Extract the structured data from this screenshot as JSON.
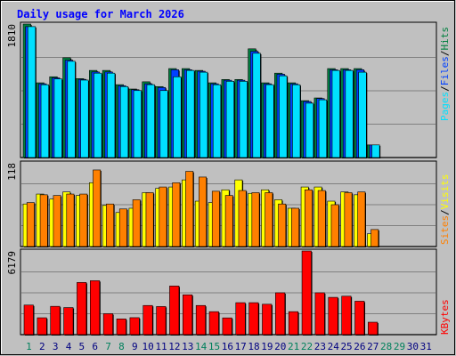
{
  "chart_data": {
    "type": "bar",
    "title": "Daily usage for March 2026",
    "x": [
      1,
      2,
      3,
      4,
      5,
      6,
      7,
      8,
      9,
      10,
      11,
      12,
      13,
      14,
      15,
      16,
      17,
      18,
      19,
      20,
      21,
      22,
      23,
      24,
      25,
      26,
      27,
      28,
      29,
      30,
      31
    ],
    "weekend_days": [
      1,
      7,
      8,
      14,
      15,
      21,
      22,
      28,
      29
    ],
    "colors": {
      "title": "#0000ff",
      "hits": "#008040",
      "files": "#0040ff",
      "pages": "#00e0ff",
      "visits": "#ffff00",
      "sites": "#ff8000",
      "kbytes": "#ff0000",
      "weekday_label": "#000080",
      "weekend_label": "#00805c",
      "separator": "#000000"
    },
    "panels": [
      {
        "name": "hits-files-pages",
        "ymax_label": "1810",
        "ylim": [
          0,
          1810
        ],
        "axis_title": [
          {
            "text": "Pages",
            "color": "#00e0ff"
          },
          {
            "text": "/",
            "color": "#000000"
          },
          {
            "text": "Files",
            "color": "#0040ff"
          },
          {
            "text": "/",
            "color": "#000000"
          },
          {
            "text": "Hits",
            "color": "#008040"
          }
        ],
        "series": [
          {
            "name": "Hits",
            "color": "#008040",
            "values": [
              1810,
              1013,
              1095,
              1353,
              1070,
              1181,
              1181,
              988,
              929,
              1027,
              962,
              1206,
              1206,
              1181,
              1013,
              1058,
              1058,
              1474,
              1013,
              1144,
              1013,
              771,
              808,
              1206,
              1206,
              1206,
              171,
              0,
              0,
              0,
              0
            ]
          },
          {
            "name": "Files",
            "color": "#0040ff",
            "values": [
              1775,
              1000,
              1080,
              1320,
              1060,
              1160,
              1160,
              974,
              920,
              1000,
              950,
              1190,
              1190,
              1170,
              1000,
              1048,
              1048,
              1440,
              1000,
              1130,
              1000,
              760,
              800,
              1190,
              1190,
              1190,
              170,
              0,
              0,
              0,
              0
            ]
          },
          {
            "name": "Pages",
            "color": "#00e0ff",
            "values": [
              1775,
              987,
              1066,
              1305,
              1050,
              1144,
              1144,
              962,
              908,
              988,
              908,
              1095,
              1181,
              1157,
              987,
              1034,
              1034,
              1414,
              988,
              1108,
              987,
              737,
              783,
              1181,
              1181,
              1157,
              171,
              0,
              0,
              0,
              0
            ]
          }
        ]
      },
      {
        "name": "visits-sites",
        "ymax_label": "118",
        "ylim": [
          0,
          118
        ],
        "axis_title": [
          {
            "text": "Sites",
            "color": "#ff8000"
          },
          {
            "text": "/",
            "color": "#000000"
          },
          {
            "text": "Visits",
            "color": "#ffff00"
          }
        ],
        "series": [
          {
            "name": "Visits",
            "color": "#ffff00",
            "values": [
              60,
              74,
              67,
              77,
              72,
              90,
              58,
              48,
              54,
              76,
              82,
              84,
              94,
              64,
              62,
              80,
              94,
              75,
              80,
              66,
              54,
              84,
              84,
              64,
              77,
              73,
              18,
              0,
              0,
              0,
              0
            ]
          },
          {
            "name": "Sites",
            "color": "#ff8000",
            "values": [
              62,
              73,
              72,
              74,
              74,
              108,
              60,
              53,
              66,
              76,
              84,
              90,
              106,
              98,
              78,
              72,
              79,
              76,
              76,
              60,
              54,
              80,
              79,
              59,
              76,
              77,
              24,
              0,
              0,
              0,
              0
            ]
          }
        ]
      },
      {
        "name": "kbytes",
        "ymax_label": "6179",
        "ylim": [
          0,
          6179
        ],
        "axis_title": [
          {
            "text": "KBytes",
            "color": "#ff0000"
          }
        ],
        "series": [
          {
            "name": "KBytes",
            "color": "#ff0000",
            "values": [
              2185,
              1246,
              2092,
              2000,
              3854,
              3984,
              1546,
              1161,
              1254,
              2154,
              2077,
              3592,
              2942,
              2154,
              1698,
              1238,
              2361,
              2361,
              2246,
              3092,
              1698,
              6179,
              3092,
              2754,
              2840,
              2469,
              919,
              0,
              0,
              0,
              0
            ]
          }
        ]
      }
    ]
  }
}
